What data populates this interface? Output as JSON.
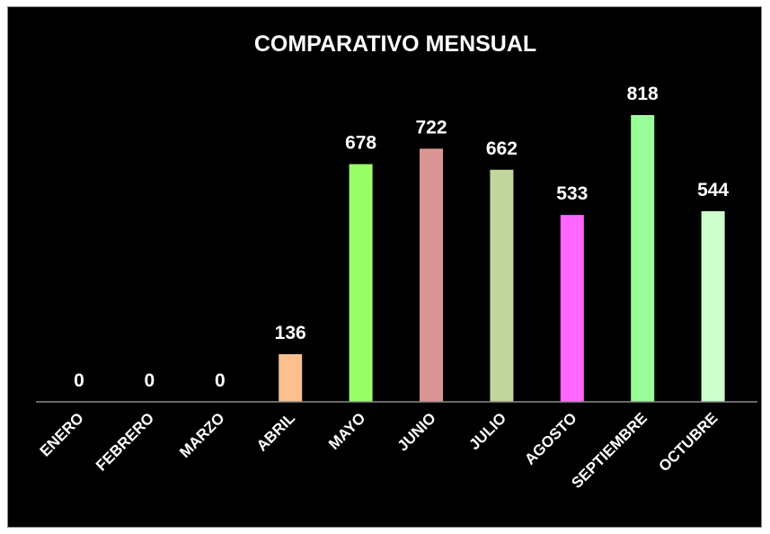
{
  "chart_data": {
    "type": "bar",
    "title": "COMPARATIVO MENSUAL",
    "categories": [
      "ENERO",
      "FEBRERO",
      "MARZO",
      "ABRIL",
      "MAYO",
      "JUNIO",
      "JULIO",
      "AGOSTO",
      "SEPTIEMBRE",
      "OCTUBRE"
    ],
    "values": [
      0,
      0,
      0,
      136,
      678,
      722,
      662,
      533,
      818,
      544
    ],
    "colors": [
      "#000000",
      "#000000",
      "#000000",
      "#FAC090",
      "#99FF66",
      "#D99694",
      "#C3D69B",
      "#FF66FF",
      "#99FF99",
      "#CCFFCC"
    ],
    "ylim": [
      0,
      818
    ],
    "grid": false,
    "legend": "none",
    "background": "#000000",
    "text_color": "#FFFFFF"
  }
}
